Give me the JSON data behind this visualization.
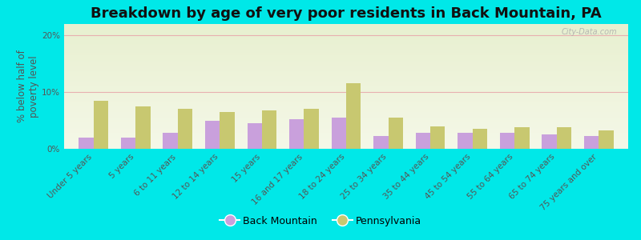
{
  "title": "Breakdown by age of very poor residents in Back Mountain, PA",
  "ylabel": "% below half of\npoverty level",
  "categories": [
    "Under 5 years",
    "5 years",
    "6 to 11 years",
    "12 to 14 years",
    "15 years",
    "16 and 17 years",
    "18 to 24 years",
    "25 to 34 years",
    "35 to 44 years",
    "45 to 54 years",
    "55 to 64 years",
    "65 to 74 years",
    "75 years and over"
  ],
  "back_mountain": [
    2.0,
    2.0,
    2.8,
    5.0,
    4.5,
    5.2,
    5.5,
    2.2,
    2.8,
    2.8,
    2.8,
    2.5,
    2.2
  ],
  "pennsylvania": [
    8.5,
    7.5,
    7.0,
    6.5,
    6.8,
    7.0,
    11.5,
    5.5,
    4.0,
    3.5,
    3.8,
    3.8,
    3.2
  ],
  "bm_color": "#c9a0dc",
  "pa_color": "#c8c870",
  "background_outer": "#00e8e8",
  "ylim": [
    0,
    22
  ],
  "yticks": [
    0,
    10,
    20
  ],
  "ytick_labels": [
    "0%",
    "10%",
    "20%"
  ],
  "grid_color": "#e8b0b0",
  "title_fontsize": 13,
  "axis_label_fontsize": 8.5,
  "tick_label_fontsize": 7.5,
  "legend_fontsize": 9,
  "bar_width": 0.35
}
